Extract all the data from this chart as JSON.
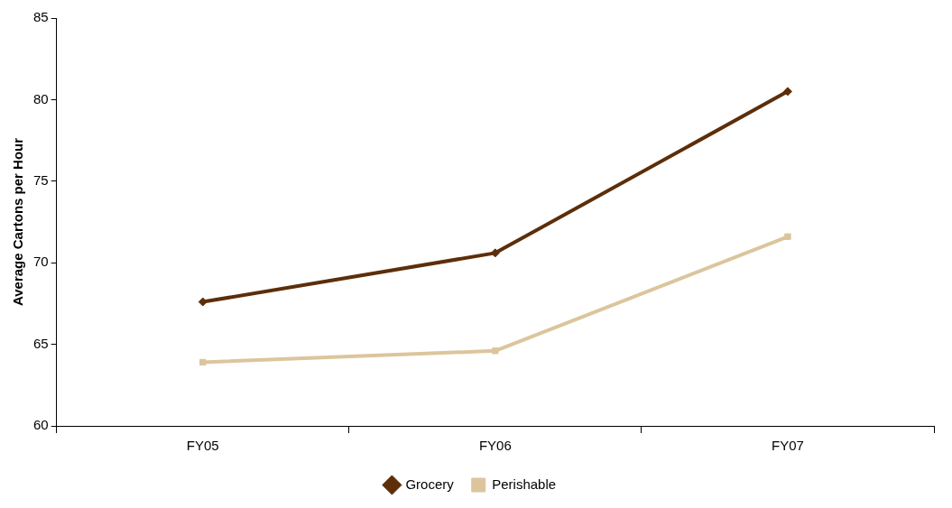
{
  "chart_data": {
    "type": "line",
    "ylabel": "Average Cartons per Hour",
    "categories": [
      "FY05",
      "FY06",
      "FY07"
    ],
    "series": [
      {
        "name": "Grocery",
        "color": "#5c2e0a",
        "values": [
          67.6,
          70.6,
          80.5
        ],
        "marker": "diamond"
      },
      {
        "name": "Perishable",
        "color": "#dcc59c",
        "values": [
          63.9,
          64.6,
          71.6
        ],
        "marker": "square"
      }
    ],
    "ylim": [
      60,
      85
    ],
    "yticks": [
      60,
      65,
      70,
      75,
      80,
      85
    ],
    "grid": false,
    "legend": "bottom",
    "line_style": "solid"
  }
}
